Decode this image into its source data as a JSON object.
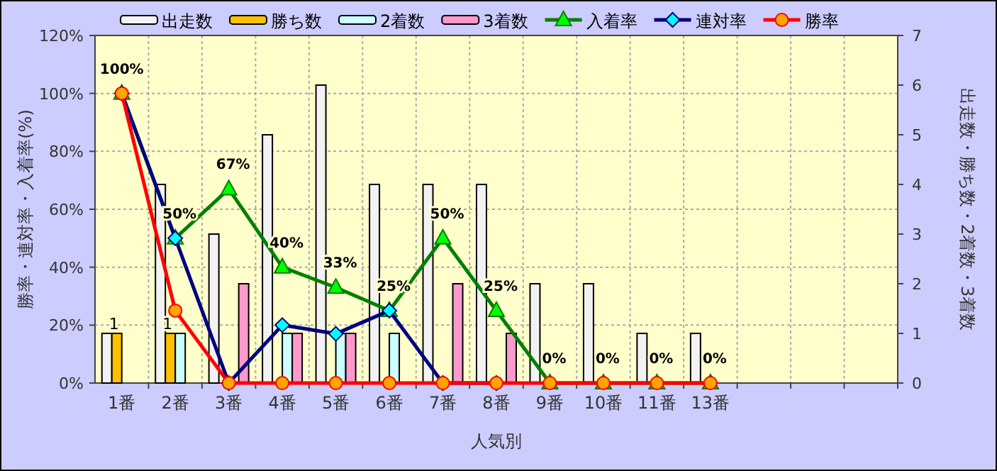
{
  "chart_data": {
    "type": "bar",
    "xlabel": "人気別",
    "ylabel": "勝率・連対率・入着率(%)",
    "y2label": "出走数・勝ち数・2着数・3着数",
    "categories": [
      "1番",
      "2番",
      "3番",
      "4番",
      "5番",
      "6番",
      "7番",
      "8番",
      "9番",
      "10番",
      "11番",
      "13番",
      null,
      null,
      null
    ],
    "series": [
      {
        "name": "出走数",
        "type": "bar",
        "axis": "y2",
        "color": "#f2f2f2",
        "values": [
          1,
          4,
          3,
          5,
          6,
          4,
          4,
          4,
          2,
          2,
          1,
          1,
          null,
          null,
          null
        ]
      },
      {
        "name": "勝ち数",
        "type": "bar",
        "axis": "y2",
        "color": "#ffc000",
        "values": [
          1,
          1,
          0,
          0,
          0,
          0,
          0,
          0,
          0,
          0,
          0,
          0,
          null,
          null,
          null
        ],
        "value_labels": [
          "1",
          "1",
          null,
          null,
          null,
          null,
          null,
          null,
          null,
          null,
          null,
          null,
          null,
          null,
          null
        ]
      },
      {
        "name": "2着数",
        "type": "bar",
        "axis": "y2",
        "color": "#ccffff",
        "values": [
          0,
          1,
          0,
          1,
          1,
          1,
          0,
          0,
          0,
          0,
          0,
          0,
          null,
          null,
          null
        ]
      },
      {
        "name": "3着数",
        "type": "bar",
        "axis": "y2",
        "color": "#ff99cc",
        "values": [
          0,
          0,
          2,
          1,
          1,
          0,
          2,
          1,
          0,
          0,
          0,
          0,
          null,
          null,
          null
        ]
      },
      {
        "name": "入着率",
        "type": "line",
        "axis": "y",
        "color": "#008000",
        "marker": "triangle",
        "values": [
          100,
          50,
          67,
          40,
          33,
          25,
          50,
          25,
          0,
          0,
          0,
          0,
          null,
          null,
          null
        ],
        "value_labels": [
          "100%",
          "50%",
          "67%",
          "40%",
          "33%",
          "25%",
          "50%",
          "25%",
          "0%",
          "0%",
          "0%",
          "0%",
          null,
          null,
          null
        ]
      },
      {
        "name": "連対率",
        "type": "line",
        "axis": "y",
        "color": "#000080",
        "marker": "diamond",
        "values": [
          100,
          50,
          0,
          20,
          17,
          25,
          0,
          0,
          null,
          null,
          null,
          null,
          null,
          null,
          null
        ]
      },
      {
        "name": "勝率",
        "type": "line",
        "axis": "y",
        "color": "#ff0000",
        "marker": "circle",
        "values": [
          100,
          25,
          0,
          0,
          0,
          0,
          0,
          0,
          0,
          0,
          0,
          0,
          null,
          null,
          null
        ]
      }
    ],
    "ylim": [
      0,
      120
    ],
    "yticks": [
      {
        "value": 0,
        "label": "0%"
      },
      {
        "value": 20,
        "label": "20%"
      },
      {
        "value": 40,
        "label": "40%"
      },
      {
        "value": 60,
        "label": "60%"
      },
      {
        "value": 80,
        "label": "80%"
      },
      {
        "value": 100,
        "label": "100%"
      },
      {
        "value": 120,
        "label": "120%"
      }
    ],
    "y2lim": [
      0,
      7
    ],
    "y2ticks": [
      0,
      1,
      2,
      3,
      4,
      5,
      6,
      7
    ],
    "grid": true,
    "legend": "top"
  }
}
